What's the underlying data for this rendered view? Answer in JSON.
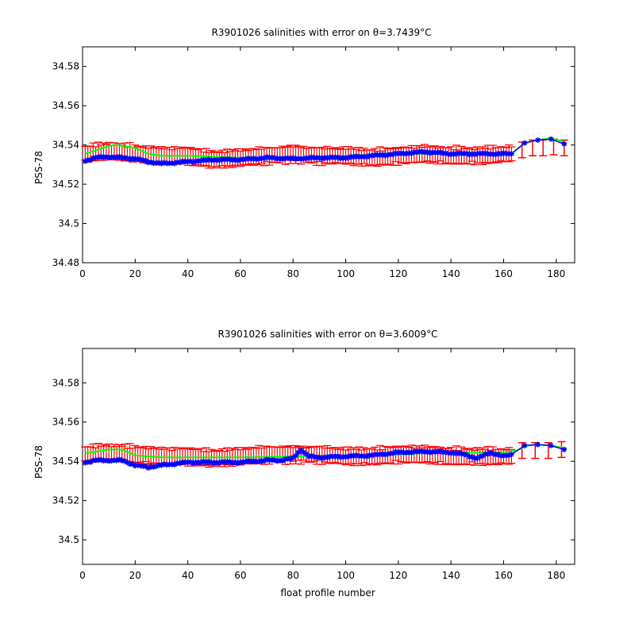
{
  "chart_data": [
    {
      "type": "line",
      "title": "R3901026 salinities with error on θ=3.7439°C",
      "ylabel": "PSS-78",
      "xlabel": "",
      "xlim": [
        0,
        187
      ],
      "ylim": [
        34.48,
        34.59
      ],
      "xticks": [
        0,
        20,
        40,
        60,
        80,
        100,
        120,
        140,
        160,
        180
      ],
      "yticks": [
        34.48,
        34.5,
        34.52,
        34.54,
        34.56,
        34.58
      ],
      "ytick_labels": [
        "34.48",
        "34.5",
        "34.52",
        "34.54",
        "34.56",
        "34.58"
      ],
      "grid": false,
      "colors": {
        "errorbar": "#ff0000",
        "fit": "#00ff00",
        "salinity": "#0000ff"
      },
      "series": [
        {
          "kind": "red-errorbars",
          "x_start": 1,
          "x_end": 163,
          "error": 0.0035,
          "center_knots": [
            [
              1,
              34.5355
            ],
            [
              10,
              34.537
            ],
            [
              20,
              34.5355
            ],
            [
              30,
              34.5345
            ],
            [
              40,
              34.5345
            ],
            [
              50,
              34.5325
            ],
            [
              60,
              34.5335
            ],
            [
              70,
              34.5345
            ],
            [
              80,
              34.5355
            ],
            [
              90,
              34.5345
            ],
            [
              100,
              34.5345
            ],
            [
              110,
              34.5335
            ],
            [
              120,
              34.5345
            ],
            [
              130,
              34.5355
            ],
            [
              140,
              34.5345
            ],
            [
              150,
              34.5345
            ],
            [
              163,
              34.5355
            ]
          ]
        },
        {
          "kind": "red-errorbars-sparse",
          "x": [
            167,
            171,
            175,
            179,
            183
          ],
          "center": [
            34.5375,
            34.5385,
            34.5385,
            34.539,
            34.5385
          ],
          "error": 0.004
        },
        {
          "kind": "green-fit",
          "points": [
            [
              1,
              34.5355
            ],
            [
              10,
              34.5395
            ],
            [
              13,
              34.54
            ],
            [
              20,
              34.5385
            ],
            [
              25,
              34.5355
            ],
            [
              30,
              34.5345
            ],
            [
              40,
              34.5345
            ],
            [
              60,
              34.5335
            ],
            [
              80,
              34.5335
            ],
            [
              100,
              34.5345
            ],
            [
              120,
              34.5355
            ],
            [
              140,
              34.5355
            ],
            [
              163,
              34.5355
            ],
            [
              168,
              34.541
            ],
            [
              173,
              34.5425
            ],
            [
              178,
              34.5435
            ],
            [
              182,
              34.542
            ],
            [
              184,
              34.5405
            ]
          ]
        },
        {
          "kind": "blue-salinity",
          "x_start": 1,
          "x_end": 163,
          "knots": [
            [
              1,
              34.532
            ],
            [
              5,
              34.5335
            ],
            [
              10,
              34.534
            ],
            [
              15,
              34.5335
            ],
            [
              20,
              34.533
            ],
            [
              25,
              34.5315
            ],
            [
              30,
              34.5305
            ],
            [
              40,
              34.5315
            ],
            [
              50,
              34.5325
            ],
            [
              60,
              34.5325
            ],
            [
              70,
              34.5335
            ],
            [
              80,
              34.533
            ],
            [
              90,
              34.5335
            ],
            [
              100,
              34.5335
            ],
            [
              110,
              34.5345
            ],
            [
              120,
              34.5355
            ],
            [
              130,
              34.5365
            ],
            [
              140,
              34.5355
            ],
            [
              150,
              34.5355
            ],
            [
              163,
              34.5355
            ]
          ],
          "sparse": [
            [
              168,
              34.541
            ],
            [
              173,
              34.5425
            ],
            [
              178,
              34.543
            ],
            [
              183,
              34.5405
            ]
          ]
        }
      ]
    },
    {
      "type": "line",
      "title": "R3901026 salinities with error on θ=3.6009°C",
      "ylabel": "PSS-78",
      "xlabel": "float profile number",
      "xlim": [
        0,
        187
      ],
      "ylim": [
        34.4875,
        34.5975
      ],
      "xticks": [
        0,
        20,
        40,
        60,
        80,
        100,
        120,
        140,
        160,
        180
      ],
      "yticks": [
        34.5,
        34.52,
        34.54,
        34.56,
        34.58
      ],
      "ytick_labels": [
        "34.5",
        "34.52",
        "34.54",
        "34.56",
        "34.58"
      ],
      "grid": false,
      "colors": {
        "errorbar": "#ff0000",
        "fit": "#00ff00",
        "salinity": "#0000ff"
      },
      "series": [
        {
          "kind": "red-errorbars",
          "x_start": 1,
          "x_end": 163,
          "error": 0.0035,
          "center_knots": [
            [
              1,
              34.5435
            ],
            [
              10,
              34.5445
            ],
            [
              20,
              34.5435
            ],
            [
              30,
              34.5425
            ],
            [
              40,
              34.5425
            ],
            [
              50,
              34.5415
            ],
            [
              60,
              34.5425
            ],
            [
              70,
              34.5435
            ],
            [
              80,
              34.5435
            ],
            [
              90,
              34.5435
            ],
            [
              100,
              34.5425
            ],
            [
              110,
              34.5425
            ],
            [
              120,
              34.5435
            ],
            [
              130,
              34.5435
            ],
            [
              140,
              34.5425
            ],
            [
              150,
              34.5425
            ],
            [
              163,
              34.5425
            ]
          ]
        },
        {
          "kind": "red-errorbars-sparse",
          "x": [
            167,
            172,
            177,
            182
          ],
          "center": [
            34.5455,
            34.5455,
            34.5455,
            34.546
          ],
          "error": 0.004
        },
        {
          "kind": "green-fit",
          "points": [
            [
              1,
              34.544
            ],
            [
              10,
              34.546
            ],
            [
              15,
              34.546
            ],
            [
              20,
              34.543
            ],
            [
              30,
              34.542
            ],
            [
              40,
              34.542
            ],
            [
              60,
              34.542
            ],
            [
              80,
              34.5425
            ],
            [
              100,
              34.543
            ],
            [
              120,
              34.5435
            ],
            [
              140,
              34.5445
            ],
            [
              160,
              34.5445
            ],
            [
              165,
              34.5455
            ],
            [
              169,
              34.548
            ],
            [
              173,
              34.5485
            ],
            [
              178,
              34.548
            ],
            [
              184,
              34.5465
            ]
          ]
        },
        {
          "kind": "blue-salinity",
          "x_start": 1,
          "x_end": 163,
          "knots": [
            [
              1,
              34.5395
            ],
            [
              5,
              34.5405
            ],
            [
              10,
              34.5405
            ],
            [
              15,
              34.5405
            ],
            [
              20,
              34.538
            ],
            [
              25,
              34.537
            ],
            [
              30,
              34.538
            ],
            [
              40,
              34.5395
            ],
            [
              50,
              34.5395
            ],
            [
              60,
              34.5395
            ],
            [
              70,
              34.5405
            ],
            [
              75,
              34.5405
            ],
            [
              80,
              34.5415
            ],
            [
              83,
              34.546
            ],
            [
              86,
              34.5425
            ],
            [
              90,
              34.542
            ],
            [
              100,
              34.5425
            ],
            [
              110,
              34.543
            ],
            [
              120,
              34.5445
            ],
            [
              130,
              34.545
            ],
            [
              140,
              34.5445
            ],
            [
              145,
              34.5435
            ],
            [
              150,
              34.5415
            ],
            [
              155,
              34.5445
            ],
            [
              160,
              34.5425
            ],
            [
              163,
              34.5435
            ]
          ],
          "sparse": [
            [
              168,
              34.548
            ],
            [
              173,
              34.5485
            ],
            [
              178,
              34.548
            ],
            [
              183,
              34.546
            ]
          ]
        }
      ]
    }
  ]
}
